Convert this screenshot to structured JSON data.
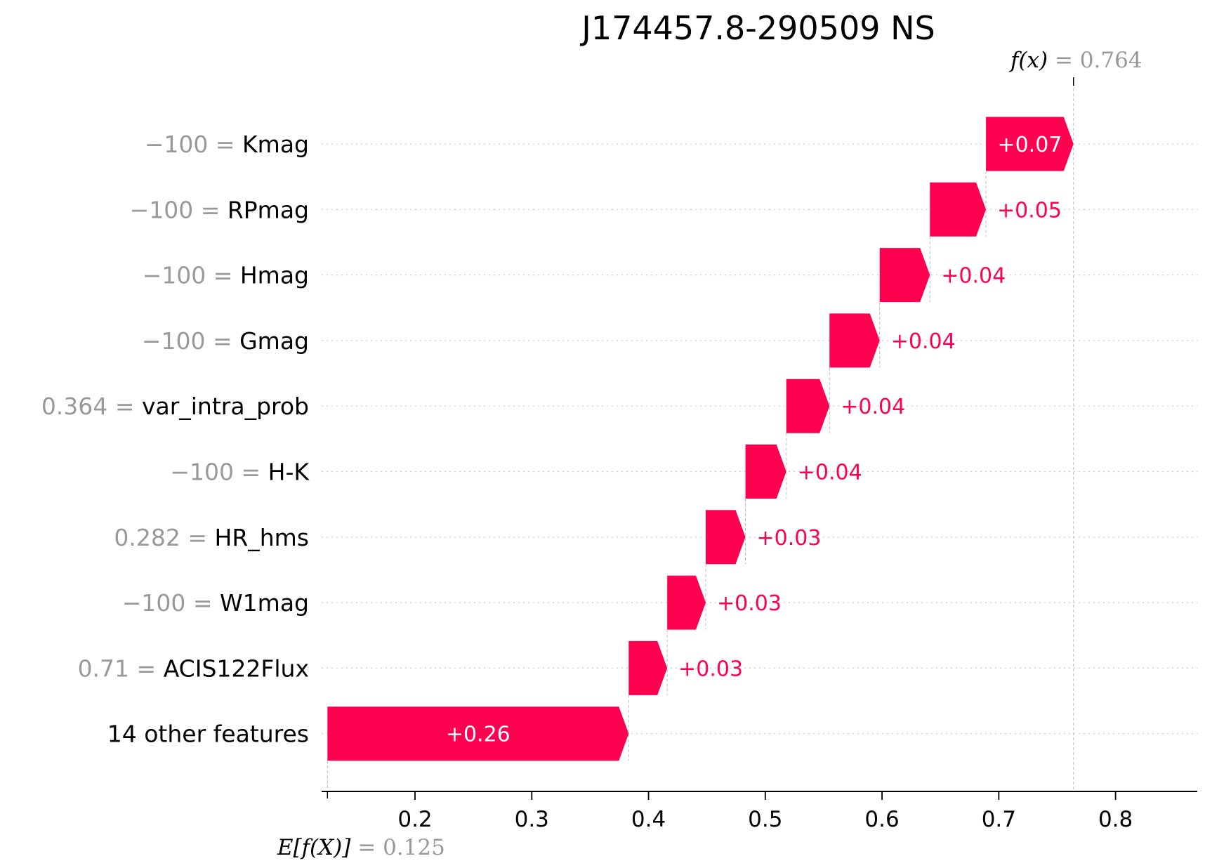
{
  "chart_data": {
    "type": "waterfall",
    "title": "J174457.8-290509 NS",
    "base_value": 0.125,
    "base_label": "E[f(X)]",
    "base_value_text": "0.125",
    "output_value": 0.764,
    "output_label": "f(x)",
    "output_value_text": "0.764",
    "xlim": [
      0.12,
      0.87
    ],
    "x_ticks": [
      0.2,
      0.3,
      0.4,
      0.5,
      0.6,
      0.7,
      0.8
    ],
    "x_tick_labels": [
      "0.2",
      "0.3",
      "0.4",
      "0.5",
      "0.6",
      "0.7",
      "0.8"
    ],
    "features": [
      {
        "name": "Kmag",
        "value_text": "−100",
        "start": 0.689,
        "end": 0.764,
        "label": "+0.07"
      },
      {
        "name": "RPmag",
        "value_text": "−100",
        "start": 0.641,
        "end": 0.689,
        "label": "+0.05"
      },
      {
        "name": "Hmag",
        "value_text": "−100",
        "start": 0.598,
        "end": 0.641,
        "label": "+0.04"
      },
      {
        "name": "Gmag",
        "value_text": "−100",
        "start": 0.555,
        "end": 0.598,
        "label": "+0.04"
      },
      {
        "name": "var_intra_prob",
        "value_text": "0.364",
        "start": 0.518,
        "end": 0.555,
        "label": "+0.04"
      },
      {
        "name": "H-K",
        "value_text": "−100",
        "start": 0.483,
        "end": 0.518,
        "label": "+0.04"
      },
      {
        "name": "HR_hms",
        "value_text": "0.282",
        "start": 0.449,
        "end": 0.483,
        "label": "+0.03"
      },
      {
        "name": "W1mag",
        "value_text": "−100",
        "start": 0.416,
        "end": 0.449,
        "label": "+0.03"
      },
      {
        "name": "ACIS122Flux",
        "value_text": "0.71",
        "start": 0.383,
        "end": 0.416,
        "label": "+0.03"
      },
      {
        "name": "14 other features",
        "value_text": "",
        "start": 0.125,
        "end": 0.383,
        "label": "+0.26"
      }
    ],
    "colors": {
      "positive": "#ff0051",
      "inside_label": "#ffffff",
      "outside_label": "#ff0051",
      "value_gray": "#999999",
      "grid": "#cccccc"
    }
  }
}
